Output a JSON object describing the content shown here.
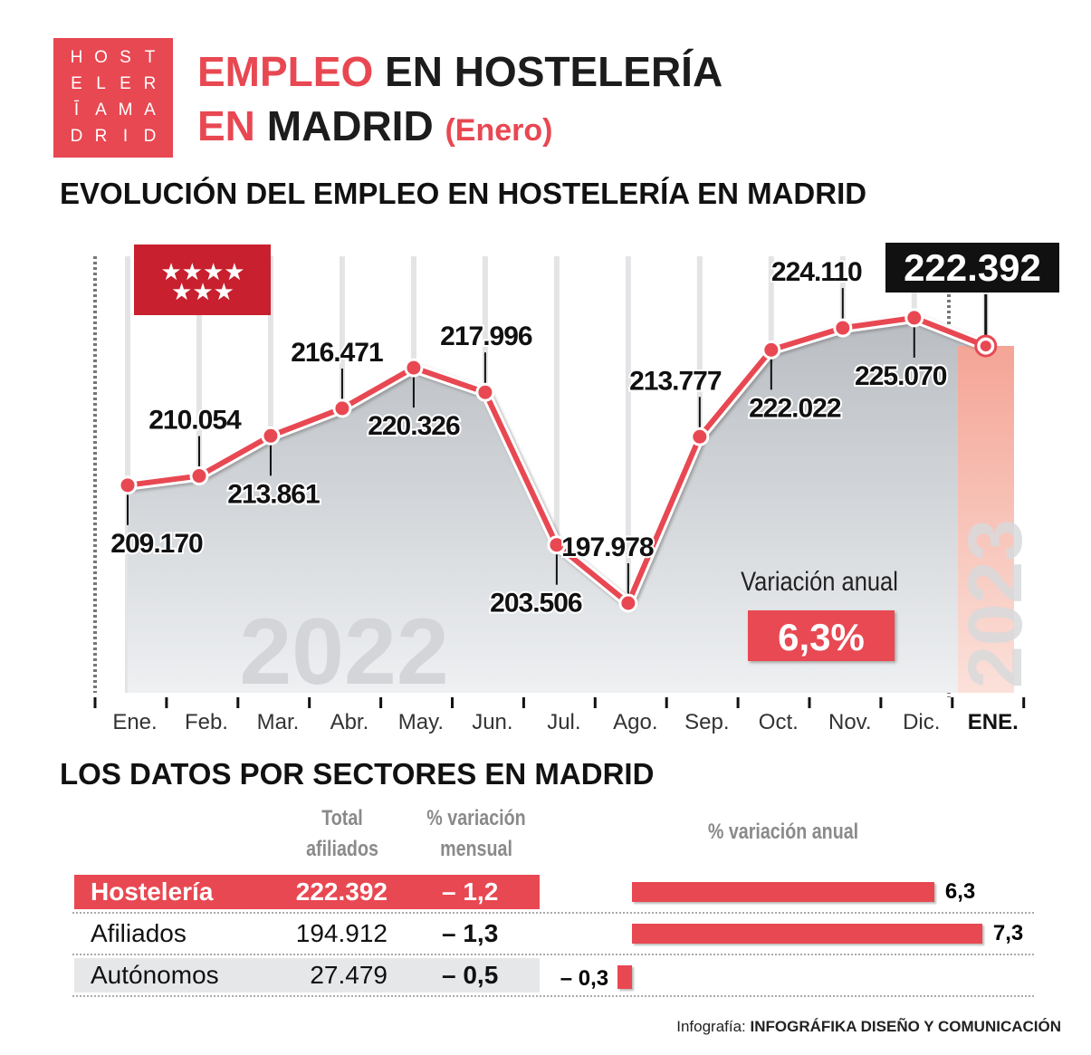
{
  "logo": {
    "letters": [
      "H",
      "O",
      "S",
      "T",
      "E",
      "L",
      "E",
      "R",
      "Ī",
      "A",
      "M",
      "A",
      "D",
      "R",
      "I",
      "D"
    ]
  },
  "title": {
    "line1_red": "EMPLEO",
    "line1_black": "EN HOSTELERÍA",
    "line2_red": "EN",
    "line2_black": "MADRID",
    "line2_sub": "(Enero)"
  },
  "section1_title": "EVOLUCIÓN DEL EMPLEO EN HOSTELERÍA EN MADRID",
  "section2_title": "LOS DATOS POR SECTORES EN MADRID",
  "colors": {
    "accent": "#e84852",
    "dark": "#111111",
    "highlight_band": "#f6b3a8"
  },
  "chart_data": {
    "type": "line",
    "categories": [
      "Ene.",
      "Feb.",
      "Mar.",
      "Abr.",
      "May.",
      "Jun.",
      "Jul.",
      "Ago.",
      "Sep.",
      "Oct.",
      "Nov.",
      "Dic.",
      "ENE."
    ],
    "values": [
      209170,
      210054,
      213861,
      216471,
      220326,
      217996,
      203506,
      197978,
      213777,
      222022,
      224110,
      225070,
      222392
    ],
    "labels": [
      "209.170",
      "210.054",
      "213.861",
      "216.471",
      "220.326",
      "217.996",
      "203.506",
      "197.978",
      "213.777",
      "222.022",
      "224.110",
      "225.070",
      "222.392"
    ],
    "year_labels": [
      "2022",
      "2023"
    ],
    "highlight": "ENE.",
    "annotation": {
      "label": "Variación anual",
      "value": "6,3%"
    },
    "grid": true
  },
  "table": {
    "headers": {
      "total": [
        "Total",
        "afiliados"
      ],
      "mensual": [
        "% variación",
        "mensual"
      ],
      "anual": "% variación anual"
    },
    "rows": [
      {
        "name": "Hostelería",
        "total": "222.392",
        "mensual": "– 1,2",
        "anual": 6.3,
        "anual_label": "6,3"
      },
      {
        "name": "Afiliados",
        "total": "194.912",
        "mensual": "– 1,3",
        "anual": 7.3,
        "anual_label": "7,3"
      },
      {
        "name": "Autónomos",
        "total": "27.479",
        "mensual": "– 0,5",
        "anual": -0.3,
        "anual_label": "– 0,3"
      }
    ]
  },
  "credit": {
    "prefix": "Infografía:",
    "name": "INFOGRÁFIKA DISEÑO Y COMUNICACIÓN"
  }
}
